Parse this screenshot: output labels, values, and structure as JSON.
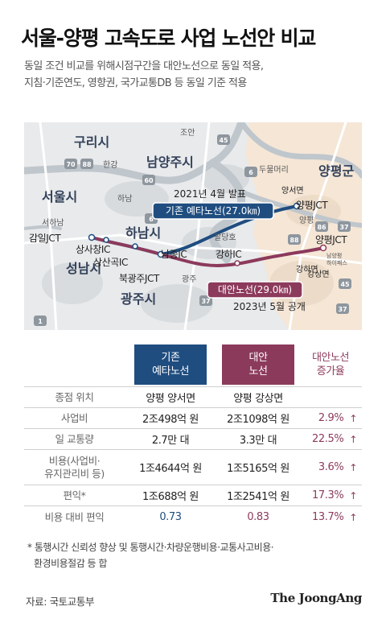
{
  "title": "서울-양평 고속도로 사업 노선안 비교",
  "subtitle": {
    "line1": "동일 조건 비교를 위해시점구간을 대안노선으로 동일 적용,",
    "line2": "지침·기준연도, 영향권, 국가교통DB 등 동일 기준 적용"
  },
  "map": {
    "regions": {
      "guri": "구리시",
      "namyangju": "남양주시",
      "seoul": "서울시",
      "hanam": "하남시",
      "seongnam": "성남시",
      "gwangju": "광주시",
      "yangpyeong": "양평군"
    },
    "places": {
      "hangang": "한강",
      "joan": "조안",
      "dumulmeori": "두물머리",
      "palgangho": "팔당호",
      "yangseomyeon": "양서면",
      "gangsangmyeon": "강상면",
      "ic_yangpyeong": "양평",
      "namyangpyeong": "남양평\n하이패스",
      "hanam_small": "하남",
      "gwangju_small": "광주"
    },
    "nodes": {
      "seohanam": "서하남",
      "gamil": "감일JCT",
      "sangsachang": "상사창IC",
      "sangsangok": "상산곡IC",
      "namjong": "남종IC",
      "bukgwangju": "북광주JCT",
      "gangha": "강하IC",
      "yangpyeong_jct_a": "양평JCT",
      "yangpyeong_jct_b": "양평JCT",
      "ganghamyeon": "강하면",
      "gangsangmyeon": "강상면"
    },
    "routes": {
      "original_label": "기존 예타노선(27.0㎞)",
      "original_date": "2021년 4월 발표",
      "alternative_label": "대안노선(29.0㎞)",
      "alternative_date": "2023년 5월 공개"
    },
    "shields": [
      "70",
      "88",
      "45",
      "6",
      "60",
      "37",
      "86",
      "88",
      "37",
      "45",
      "1",
      "37",
      "6"
    ],
    "colors": {
      "original": "#1f4d80",
      "alternative": "#8c3a5c",
      "yangpyeong_area": "#f5e6d6"
    }
  },
  "table": {
    "col_headers": {
      "original": "기존\n예타노선",
      "alternative": "대안\n노선",
      "increase": "대안노선\n증가율"
    },
    "rows": [
      {
        "label": "종점 위치",
        "original": "양평 양서면",
        "alternative": "양평 강상면",
        "increase": "",
        "arrow": ""
      },
      {
        "label": "사업비",
        "original": "2조498억 원",
        "alternative": "2조1098억 원",
        "increase": "2.9%",
        "arrow": "↑"
      },
      {
        "label": "일 교통량",
        "original": "2.7만 대",
        "alternative": "3.3만 대",
        "increase": "22.5%",
        "arrow": "↑"
      },
      {
        "label": "비용(사업비·\n유지관리비 등)",
        "original": "1조4644억 원",
        "alternative": "1조5165억 원",
        "increase": "3.6%",
        "arrow": "↑"
      },
      {
        "label": "편익*",
        "original": "1조688억 원",
        "alternative": "1조2541억 원",
        "increase": "17.3%",
        "arrow": "↑"
      },
      {
        "label": "비용 대비 편익",
        "original": "0.73",
        "alternative": "0.83",
        "increase": "13.7%",
        "arrow": "↑"
      }
    ]
  },
  "footnote": {
    "line1": "* 통행시간 신뢰성 향상 및 통행시간·차량운행비용·교통사고비용·",
    "line2": "환경비용절감 등 합"
  },
  "source": "자료: 국토교통부",
  "logo": "The JoongAng"
}
